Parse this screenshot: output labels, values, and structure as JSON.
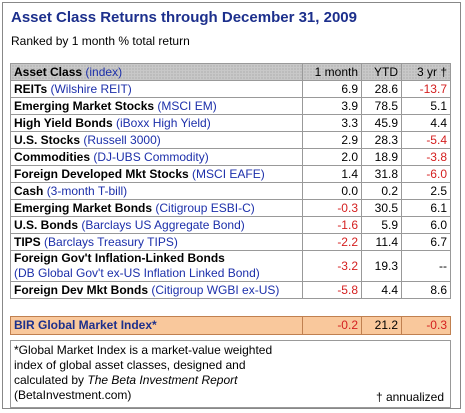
{
  "header": {
    "title": "Asset Class Returns through December 31, 2009",
    "subtitle": "Ranked by 1 month % total return"
  },
  "table": {
    "columns": {
      "name": "Asset Class",
      "index": "(index)",
      "month": "1 month",
      "ytd": "YTD",
      "yr3": "3 yr †"
    },
    "rows": [
      {
        "name": "REITs",
        "index": "(Wilshire REIT)",
        "month": "6.9",
        "ytd": "28.6",
        "yr3": "-13.7"
      },
      {
        "name": "Emerging Market Stocks",
        "index": "(MSCI EM)",
        "month": "3.9",
        "ytd": "78.5",
        "yr3": "5.1"
      },
      {
        "name": "High Yield Bonds",
        "index": "(iBoxx High Yield)",
        "month": "3.3",
        "ytd": "45.9",
        "yr3": "4.4"
      },
      {
        "name": "U.S. Stocks",
        "index": "(Russell 3000)",
        "month": "2.9",
        "ytd": "28.3",
        "yr3": "-5.4"
      },
      {
        "name": "Commodities",
        "index": "(DJ-UBS Commodity)",
        "month": "2.0",
        "ytd": "18.9",
        "yr3": "-3.8"
      },
      {
        "name": "Foreign Developed Mkt Stocks",
        "index": "(MSCI EAFE)",
        "month": "1.4",
        "ytd": "31.8",
        "yr3": "-6.0"
      },
      {
        "name": "Cash",
        "index": "(3-month T-bill)",
        "month": "0.0",
        "ytd": "0.2",
        "yr3": "2.5"
      },
      {
        "name": "Emerging Market Bonds",
        "index": "(Citigroup ESBI-C)",
        "month": "-0.3",
        "ytd": "30.5",
        "yr3": "6.1"
      },
      {
        "name": "U.S. Bonds",
        "index": "(Barclays US Aggregate Bond)",
        "month": "-1.6",
        "ytd": "5.9",
        "yr3": "6.0"
      },
      {
        "name": "TIPS",
        "index": "(Barclays Treasury TIPS)",
        "month": "-2.2",
        "ytd": "11.4",
        "yr3": "6.7"
      },
      {
        "name": "Foreign Gov't Inflation-Linked Bonds",
        "index": "(DB Global Gov't ex-US Inflation Linked Bond)",
        "month": "-3.2",
        "ytd": "19.3",
        "yr3": "--"
      },
      {
        "name": "Foreign Dev Mkt Bonds",
        "index": "(Citigroup WGBI ex-US)",
        "month": "-5.8",
        "ytd": "4.4",
        "yr3": "8.6"
      }
    ],
    "summary": {
      "name": "BIR Global Market Index*",
      "month": "-0.2",
      "ytd": "21.2",
      "yr3": "-0.3"
    }
  },
  "note": {
    "line1": "*Global Market Index is a market-value weighted",
    "line2": "index of global asset classes, designed and",
    "line3_start": "calculated by ",
    "line3_italic": "The Beta Investment Report",
    "line4": "(BetaInvestment.com)",
    "dagger": "† annualized"
  }
}
